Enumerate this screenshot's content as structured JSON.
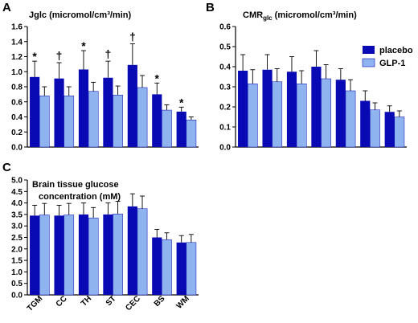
{
  "chart_data": [
    {
      "type": "bar",
      "panel": "A",
      "title": "Jglc (micromol/cm³/min)",
      "categories": [
        "TGM",
        "CC",
        "TH",
        "ST",
        "CEC",
        "BS",
        "WM"
      ],
      "yticks": [
        "0.0",
        "0.2",
        "0.4",
        "0.6",
        "0.8",
        "1.0",
        "1.2",
        "1.4",
        "1.6"
      ],
      "ylim": [
        0,
        1.6
      ],
      "series": [
        {
          "name": "placebo",
          "values": [
            0.93,
            0.91,
            1.03,
            0.92,
            1.09,
            0.7,
            0.47
          ],
          "errors": [
            0.21,
            0.21,
            0.25,
            0.22,
            0.28,
            0.15,
            0.06
          ]
        },
        {
          "name": "GLP-1",
          "values": [
            0.68,
            0.68,
            0.74,
            0.69,
            0.79,
            0.49,
            0.36
          ],
          "errors": [
            0.12,
            0.12,
            0.12,
            0.12,
            0.16,
            0.07,
            0.04
          ]
        }
      ],
      "annotations": [
        "*",
        "†",
        "*",
        "†",
        "†",
        "*",
        "*"
      ]
    },
    {
      "type": "bar",
      "panel": "B",
      "title_main": "CMR",
      "title_sub": "glc",
      "title_rest": " (micromol/cm³/min)",
      "categories": [
        "TGM",
        "CC",
        "TH",
        "ST",
        "CEC",
        "BS",
        "WM"
      ],
      "yticks": [
        "0.0",
        "0.1",
        "0.2",
        "0.3",
        "0.4",
        "0.5",
        "0.6"
      ],
      "ylim": [
        0,
        0.6
      ],
      "series": [
        {
          "name": "placebo",
          "values": [
            0.38,
            0.385,
            0.375,
            0.4,
            0.335,
            0.23,
            0.175
          ],
          "errors": [
            0.08,
            0.075,
            0.075,
            0.08,
            0.055,
            0.05,
            0.03
          ]
        },
        {
          "name": "GLP-1",
          "values": [
            0.315,
            0.325,
            0.315,
            0.34,
            0.28,
            0.185,
            0.15
          ],
          "errors": [
            0.07,
            0.065,
            0.065,
            0.07,
            0.055,
            0.035,
            0.03
          ]
        }
      ],
      "legend": {
        "placement": "top-right",
        "entries": [
          "placebo",
          "GLP-1"
        ]
      }
    },
    {
      "type": "bar",
      "panel": "C",
      "title_line1": "Brain tissue glucose",
      "title_line2": "concentration (mM)",
      "categories": [
        "TGM",
        "CC",
        "TH",
        "ST",
        "CEC",
        "BS",
        "WM"
      ],
      "yticks": [
        "0.0",
        "0.5",
        "1.0",
        "1.5",
        "2.0",
        "2.5",
        "3.0",
        "3.5",
        "4.0",
        "4.5",
        "5.0"
      ],
      "ylim": [
        0,
        5.0
      ],
      "series": [
        {
          "name": "placebo",
          "values": [
            3.45,
            3.45,
            3.5,
            3.5,
            3.85,
            2.5,
            2.28
          ],
          "errors": [
            0.45,
            0.45,
            0.5,
            0.5,
            0.55,
            0.35,
            0.3
          ]
        },
        {
          "name": "GLP-1",
          "values": [
            3.48,
            3.48,
            3.35,
            3.52,
            3.75,
            2.4,
            2.28
          ],
          "errors": [
            0.5,
            0.5,
            0.45,
            0.55,
            0.55,
            0.3,
            0.35
          ]
        }
      ]
    }
  ],
  "colors": {
    "placebo": "#0a0ab4",
    "glp1": "#8fb3ef"
  }
}
